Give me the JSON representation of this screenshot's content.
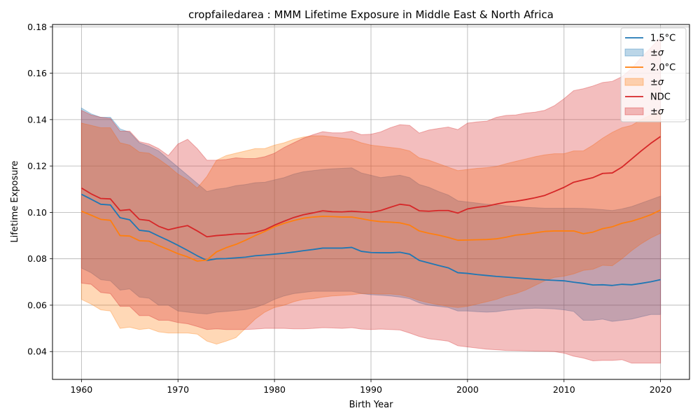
{
  "chart_data": {
    "type": "line",
    "title": "cropfailedarea : MMM Lifetime Exposure in Middle East & North Africa",
    "xlabel": "Birth Year",
    "ylabel": "Lifetime Exposure",
    "xlim": [
      1957,
      2023
    ],
    "ylim": [
      0.028,
      0.181
    ],
    "xticks": [
      1960,
      1970,
      1980,
      1990,
      2000,
      2010,
      2020
    ],
    "xtick_labels": [
      "1960",
      "1970",
      "1980",
      "1990",
      "2000",
      "2010",
      "2020"
    ],
    "yticks": [
      0.04,
      0.06,
      0.08,
      0.1,
      0.12,
      0.14,
      0.16,
      0.18
    ],
    "ytick_labels": [
      "0.04",
      "0.06",
      "0.08",
      "0.10",
      "0.12",
      "0.14",
      "0.16",
      "0.18"
    ],
    "grid": true,
    "legend_position": "top-right",
    "x": [
      1960,
      1961,
      1962,
      1963,
      1964,
      1965,
      1966,
      1967,
      1968,
      1969,
      1970,
      1971,
      1972,
      1973,
      1974,
      1975,
      1976,
      1977,
      1978,
      1979,
      1980,
      1981,
      1982,
      1983,
      1984,
      1985,
      1986,
      1987,
      1988,
      1989,
      1990,
      1991,
      1992,
      1993,
      1994,
      1995,
      1996,
      1997,
      1998,
      1999,
      2000,
      2001,
      2002,
      2003,
      2004,
      2005,
      2006,
      2007,
      2008,
      2009,
      2010,
      2011,
      2012,
      2013,
      2014,
      2015,
      2016,
      2017,
      2018,
      2019,
      2020
    ],
    "series": [
      {
        "name": "1.5°C",
        "band_label": "±σ",
        "color": "#1f77b4",
        "band_color": "#1f77b4",
        "values": [
          0.1078,
          0.1057,
          0.1035,
          0.1032,
          0.0977,
          0.0968,
          0.0923,
          0.0918,
          0.0898,
          0.0879,
          0.0858,
          0.0836,
          0.0813,
          0.0793,
          0.08,
          0.0801,
          0.0804,
          0.0807,
          0.0813,
          0.0816,
          0.082,
          0.0824,
          0.0829,
          0.0835,
          0.084,
          0.0846,
          0.0846,
          0.0846,
          0.0849,
          0.0832,
          0.0827,
          0.0826,
          0.0826,
          0.0828,
          0.082,
          0.0793,
          0.0782,
          0.0771,
          0.0761,
          0.074,
          0.0737,
          0.0732,
          0.0728,
          0.0724,
          0.0721,
          0.0718,
          0.0715,
          0.0712,
          0.0709,
          0.0707,
          0.0705,
          0.0699,
          0.0694,
          0.0687,
          0.0688,
          0.0685,
          0.069,
          0.0688,
          0.0694,
          0.0701,
          0.071
        ],
        "lower": [
          0.076,
          0.074,
          0.071,
          0.0705,
          0.0665,
          0.067,
          0.0635,
          0.063,
          0.06,
          0.06,
          0.0575,
          0.057,
          0.0565,
          0.0562,
          0.057,
          0.0573,
          0.0577,
          0.0581,
          0.059,
          0.0605,
          0.0625,
          0.064,
          0.065,
          0.0655,
          0.066,
          0.066,
          0.066,
          0.066,
          0.066,
          0.065,
          0.0645,
          0.0643,
          0.064,
          0.0635,
          0.0628,
          0.061,
          0.06,
          0.0595,
          0.059,
          0.0575,
          0.0575,
          0.0572,
          0.057,
          0.0572,
          0.0578,
          0.0582,
          0.0585,
          0.0587,
          0.0586,
          0.0584,
          0.058,
          0.0573,
          0.0535,
          0.0535,
          0.054,
          0.053,
          0.0535,
          0.054,
          0.055,
          0.056,
          0.056
        ],
        "upper": [
          0.145,
          0.1425,
          0.141,
          0.141,
          0.136,
          0.1345,
          0.13,
          0.1285,
          0.1265,
          0.123,
          0.1195,
          0.116,
          0.1125,
          0.109,
          0.11,
          0.1105,
          0.1115,
          0.112,
          0.1128,
          0.113,
          0.114,
          0.115,
          0.1165,
          0.1175,
          0.118,
          0.1185,
          0.1188,
          0.119,
          0.1192,
          0.117,
          0.116,
          0.115,
          0.1155,
          0.116,
          0.115,
          0.112,
          0.1108,
          0.109,
          0.1075,
          0.105,
          0.1045,
          0.104,
          0.1035,
          0.1032,
          0.1028,
          0.1025,
          0.1022,
          0.102,
          0.1018,
          0.1018,
          0.1018,
          0.1018,
          0.1017,
          0.1015,
          0.1012,
          0.1008,
          0.1015,
          0.1025,
          0.104,
          0.1055,
          0.107
        ]
      },
      {
        "name": "2.0°C",
        "band_label": "±σ",
        "color": "#ff7f0e",
        "band_color": "#ff7f0e",
        "values": [
          0.1005,
          0.0988,
          0.097,
          0.0966,
          0.09,
          0.0898,
          0.0878,
          0.0876,
          0.0857,
          0.084,
          0.0822,
          0.0808,
          0.079,
          0.0795,
          0.083,
          0.0848,
          0.0862,
          0.088,
          0.09,
          0.0918,
          0.0938,
          0.0953,
          0.0965,
          0.0975,
          0.098,
          0.0983,
          0.0982,
          0.098,
          0.098,
          0.0973,
          0.0965,
          0.096,
          0.0958,
          0.0955,
          0.0945,
          0.092,
          0.091,
          0.0902,
          0.0892,
          0.088,
          0.0881,
          0.0882,
          0.0883,
          0.0886,
          0.0893,
          0.0902,
          0.0906,
          0.0912,
          0.0918,
          0.092,
          0.092,
          0.092,
          0.0908,
          0.0915,
          0.093,
          0.0938,
          0.0953,
          0.0962,
          0.0975,
          0.099,
          0.101
        ],
        "lower": [
          0.0625,
          0.0605,
          0.058,
          0.0575,
          0.05,
          0.0505,
          0.0495,
          0.05,
          0.0485,
          0.048,
          0.048,
          0.048,
          0.0475,
          0.0445,
          0.0432,
          0.0445,
          0.046,
          0.05,
          0.054,
          0.057,
          0.059,
          0.06,
          0.0615,
          0.0625,
          0.0628,
          0.0635,
          0.064,
          0.0642,
          0.0645,
          0.065,
          0.065,
          0.0648,
          0.0648,
          0.0645,
          0.0635,
          0.062,
          0.061,
          0.0602,
          0.0595,
          0.059,
          0.0595,
          0.0605,
          0.0615,
          0.0625,
          0.064,
          0.065,
          0.0665,
          0.0685,
          0.0705,
          0.072,
          0.0725,
          0.0735,
          0.075,
          0.0755,
          0.0772,
          0.077,
          0.08,
          0.0835,
          0.0865,
          0.089,
          0.091
        ],
        "upper": [
          0.1385,
          0.1375,
          0.1365,
          0.1365,
          0.13,
          0.129,
          0.126,
          0.1255,
          0.123,
          0.12,
          0.1165,
          0.114,
          0.1105,
          0.1155,
          0.1225,
          0.1245,
          0.1255,
          0.1265,
          0.1275,
          0.1275,
          0.129,
          0.13,
          0.1315,
          0.1325,
          0.133,
          0.133,
          0.1325,
          0.132,
          0.1315,
          0.13,
          0.129,
          0.1285,
          0.128,
          0.1275,
          0.1265,
          0.1235,
          0.1225,
          0.121,
          0.1195,
          0.118,
          0.1185,
          0.119,
          0.1193,
          0.1198,
          0.121,
          0.122,
          0.123,
          0.124,
          0.1248,
          0.1253,
          0.1253,
          0.1265,
          0.1265,
          0.129,
          0.132,
          0.1345,
          0.1365,
          0.1375,
          0.14,
          0.142,
          0.144
        ]
      },
      {
        "name": "NDC",
        "band_label": "±σ",
        "color": "#d62728",
        "band_color": "#d62728",
        "values": [
          0.1105,
          0.108,
          0.106,
          0.1058,
          0.1008,
          0.1012,
          0.097,
          0.0965,
          0.094,
          0.0925,
          0.0935,
          0.0943,
          0.092,
          0.0895,
          0.09,
          0.0903,
          0.0907,
          0.0908,
          0.0913,
          0.0925,
          0.0945,
          0.0962,
          0.0978,
          0.099,
          0.0998,
          0.1007,
          0.1003,
          0.1002,
          0.1005,
          0.1002,
          0.1,
          0.1008,
          0.1022,
          0.1035,
          0.103,
          0.1007,
          0.1005,
          0.1008,
          0.1008,
          0.0997,
          0.1015,
          0.1022,
          0.1027,
          0.1036,
          0.1044,
          0.1048,
          0.1055,
          0.1063,
          0.1073,
          0.109,
          0.1108,
          0.113,
          0.114,
          0.115,
          0.1168,
          0.117,
          0.1195,
          0.123,
          0.1265,
          0.1298,
          0.1327
        ],
        "lower": [
          0.0695,
          0.069,
          0.0655,
          0.065,
          0.0595,
          0.0595,
          0.0555,
          0.0555,
          0.0535,
          0.0535,
          0.0525,
          0.052,
          0.0508,
          0.0495,
          0.0498,
          0.0495,
          0.0495,
          0.0495,
          0.0497,
          0.05,
          0.05,
          0.05,
          0.0498,
          0.0498,
          0.05,
          0.0503,
          0.0502,
          0.05,
          0.0503,
          0.0497,
          0.0495,
          0.0497,
          0.0495,
          0.0493,
          0.048,
          0.0465,
          0.0455,
          0.045,
          0.0445,
          0.0425,
          0.042,
          0.0415,
          0.041,
          0.0408,
          0.0405,
          0.0404,
          0.0403,
          0.0402,
          0.0401,
          0.04,
          0.0393,
          0.038,
          0.0372,
          0.036,
          0.0362,
          0.0362,
          0.0365,
          0.035,
          0.035,
          0.035,
          0.035
        ],
        "upper": [
          0.144,
          0.142,
          0.141,
          0.1405,
          0.135,
          0.135,
          0.1305,
          0.1295,
          0.1275,
          0.1245,
          0.1295,
          0.1315,
          0.1275,
          0.1225,
          0.1225,
          0.1228,
          0.1235,
          0.1232,
          0.1232,
          0.124,
          0.1255,
          0.128,
          0.13,
          0.132,
          0.1335,
          0.1348,
          0.1343,
          0.1343,
          0.135,
          0.1335,
          0.1337,
          0.1347,
          0.1365,
          0.1378,
          0.1375,
          0.1342,
          0.1355,
          0.1362,
          0.1368,
          0.1357,
          0.1385,
          0.139,
          0.1393,
          0.141,
          0.1418,
          0.142,
          0.1428,
          0.1432,
          0.144,
          0.146,
          0.149,
          0.1525,
          0.1533,
          0.1545,
          0.156,
          0.1565,
          0.1585,
          0.162,
          0.1668,
          0.171,
          0.1755
        ]
      }
    ]
  }
}
